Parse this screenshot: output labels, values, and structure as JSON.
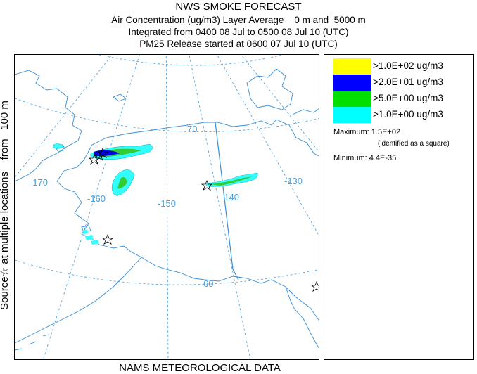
{
  "header": {
    "title": "NWS SMOKE FORECAST",
    "line1": "Air Concentration (ug/m3) Layer Average    0 m and  5000 m",
    "line2": "Integrated from 0400 08 Jul to 0500 08 Jul 10 (UTC)",
    "line3": "PM25 Release started at 0600 07 Jul 10 (UTC)"
  },
  "side_label": "Source☆ at multiple locations    from   100 m",
  "footer": "NAMS METEOROLOGICAL DATA",
  "legend": {
    "items": [
      {
        "label": ">1.0E+02 ug/m3",
        "color": "#ffff00"
      },
      {
        "label": ">2.0E+01 ug/m3",
        "color": "#0000ff"
      },
      {
        "label": ">5.0E+00 ug/m3",
        "color": "#00e000"
      },
      {
        "label": ">1.0E+00 ug/m3",
        "color": "#00ffff"
      }
    ],
    "maximum": "Maximum: 1.5E+02",
    "maximum_note": "(identified as a square)",
    "minimum": "Minimum: 4.4E-35"
  },
  "map": {
    "grid_labels": [
      "-170",
      "-160",
      "-150",
      "-140",
      "-130",
      "70",
      "60"
    ],
    "colors": {
      "coast": "#3a8fd6",
      "graticule": "#4a9fd8",
      "border": "#3a8fd6",
      "plume_light": "#33ffff",
      "plume_mid": "#33cc33",
      "plume_dark": "#0000ee"
    },
    "source_marker_icon": "star-outline"
  }
}
